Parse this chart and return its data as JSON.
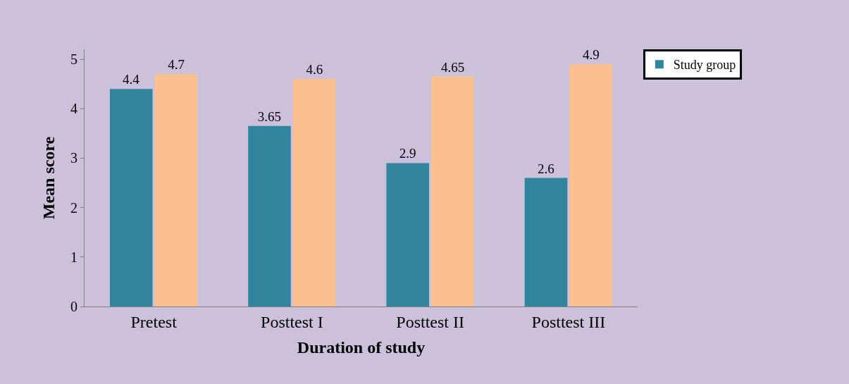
{
  "chart_data": {
    "type": "bar",
    "xlabel": "Duration of study",
    "ylabel": "Mean score",
    "categories": [
      "Pretest",
      "Posttest I",
      "Posttest II",
      "Posttest III"
    ],
    "series": [
      {
        "name": "Study group",
        "color": "#31859c",
        "values": [
          4.4,
          3.65,
          2.9,
          2.6
        ]
      },
      {
        "color": "#fac090",
        "values": [
          4.7,
          4.6,
          4.65,
          4.9
        ]
      }
    ],
    "ylim": [
      0,
      5.2
    ],
    "yticks": [
      0,
      1,
      2,
      3,
      4,
      5
    ],
    "data_labels": true,
    "grid": false,
    "legend": "top right"
  }
}
